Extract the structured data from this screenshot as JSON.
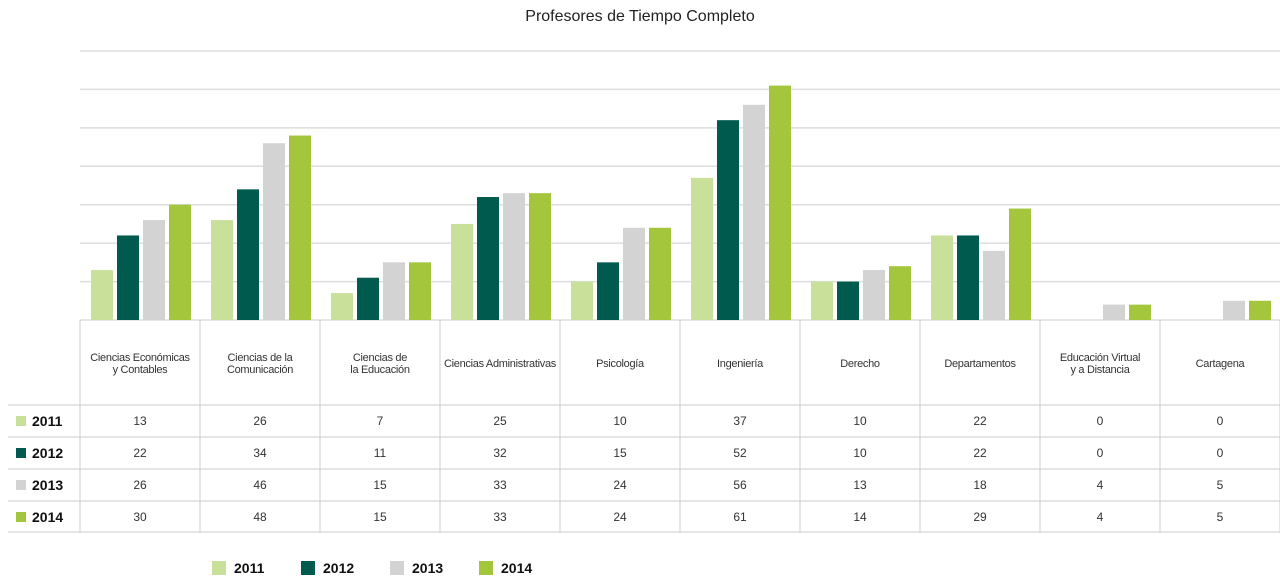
{
  "chart_data": {
    "type": "bar",
    "title": "Profesores de Tiempo Completo",
    "categories": [
      "Ciencias Económicas\ny Contables",
      "Ciencias de la\nComunicación",
      "Ciencias de\nla Educación",
      "Ciencias Administrativas",
      "Psicología",
      "Ingeniería",
      "Derecho",
      "Departamentos",
      "Educación Virtual\ny a Distancia",
      "Cartagena"
    ],
    "series": [
      {
        "name": "2011",
        "color": "#c9e09a",
        "values": [
          13,
          26,
          7,
          25,
          10,
          37,
          10,
          22,
          0,
          0
        ]
      },
      {
        "name": "2012",
        "color": "#005a4e",
        "values": [
          22,
          34,
          11,
          32,
          15,
          52,
          10,
          22,
          0,
          0
        ]
      },
      {
        "name": "2013",
        "color": "#d3d3d3",
        "values": [
          26,
          46,
          15,
          33,
          24,
          56,
          13,
          18,
          4,
          5
        ]
      },
      {
        "name": "2014",
        "color": "#a3c63c",
        "values": [
          30,
          48,
          15,
          33,
          24,
          61,
          14,
          29,
          4,
          5
        ]
      }
    ],
    "ylim": [
      0,
      70
    ],
    "yticks": [
      0,
      10,
      20,
      30,
      40,
      50,
      60,
      70
    ],
    "grid": true
  }
}
